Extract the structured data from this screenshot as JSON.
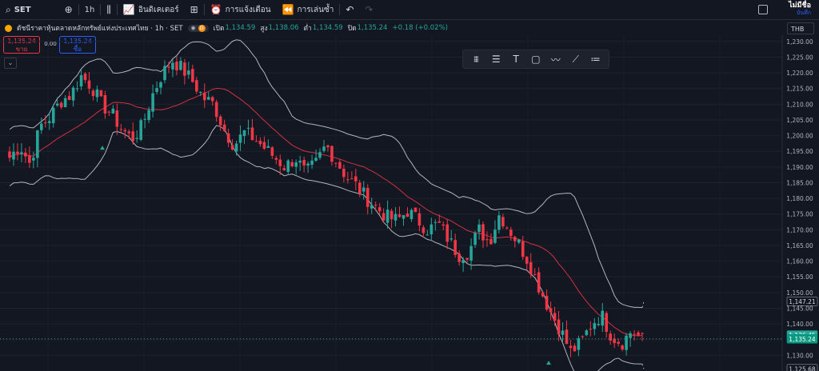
{
  "toolbar": {
    "symbol": "SET",
    "interval": "1h",
    "indicators_label": "อินดิเคเตอร์",
    "alert_label": "การแจ้งเตือน",
    "replay_label": "การเล่นซ้ำ",
    "mode_title": "ไม่มีชื่อ",
    "mode_sub": "บันทึก"
  },
  "legend": {
    "title": "ดัชนีราคาหุ้นตลาดหลักทรัพย์แห่งประเทศไทย · 1h · SET",
    "badge": "D",
    "open_label": "เปิด",
    "open": "1,134.59",
    "high_label": "สูง",
    "high": "1,138.06",
    "low_label": "ต่ำ",
    "low": "1,134.59",
    "close_label": "ปิด",
    "close": "1,135.24",
    "change": "+0.18 (+0.02%)"
  },
  "trade": {
    "sell_price": "1,135.24",
    "sell_label": "ขาย",
    "spread": "0.00",
    "buy_price": "1,135.24",
    "buy_label": "ซื้อ"
  },
  "currency": "THB",
  "colors": {
    "up": "#26a69a",
    "down": "#f23645",
    "band": "#b2b5be",
    "basis_down": "#f23645",
    "basis_up": "#4caf50",
    "bg": "#131722"
  },
  "chart_data": {
    "type": "candlestick",
    "indicator": "bollinger-bands",
    "ylim": [
      1125,
      1232
    ],
    "yticks": [
      1130,
      1135,
      1140,
      1145,
      1150,
      1155,
      1160,
      1165,
      1170,
      1175,
      1180,
      1185,
      1190,
      1195,
      1200,
      1205,
      1210,
      1215,
      1220,
      1225,
      1230
    ],
    "price_labels": [
      {
        "value": 1147.21,
        "text": "1,147.21",
        "kind": "band"
      },
      {
        "value": 1136.45,
        "text": "1,136.45",
        "kind": "up"
      },
      {
        "value": 1135.24,
        "text": "1,135.24",
        "kind": "last"
      },
      {
        "value": 1125.68,
        "text": "1,125.68",
        "kind": "band"
      }
    ],
    "close_path": [
      1193,
      1197,
      1191,
      1203,
      1206,
      1211,
      1213,
      1219,
      1216,
      1210,
      1207,
      1202,
      1199,
      1203,
      1213,
      1220,
      1224,
      1221,
      1217,
      1212,
      1210,
      1202,
      1197,
      1201,
      1199,
      1196,
      1193,
      1190,
      1193,
      1188,
      1191,
      1197,
      1192,
      1187,
      1184,
      1180,
      1177,
      1174,
      1173,
      1176,
      1173,
      1170,
      1172,
      1167,
      1162,
      1163,
      1170,
      1166,
      1175,
      1170,
      1165,
      1159,
      1151,
      1144,
      1138,
      1131,
      1134,
      1140,
      1143,
      1136,
      1134,
      1138,
      1135
    ]
  }
}
